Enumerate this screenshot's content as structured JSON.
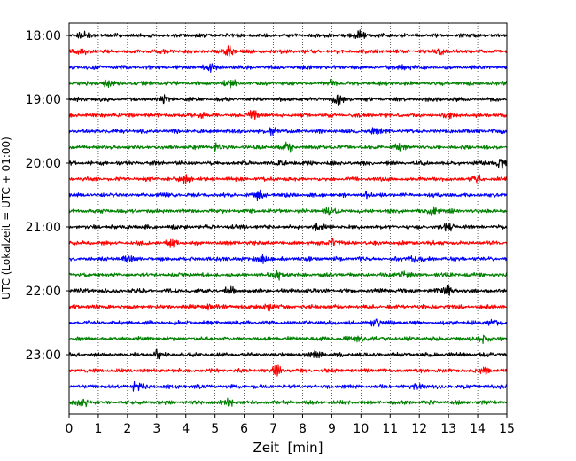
{
  "chart_data": {
    "type": "line",
    "title": "",
    "xlabel": "Zeit  [min]",
    "ylabel": "UTC (Lokalzeit = UTC + 01:00)",
    "xlim": [
      0,
      15
    ],
    "x_ticks": [
      "0",
      "1",
      "2",
      "3",
      "4",
      "5",
      "6",
      "7",
      "8",
      "9",
      "10",
      "11",
      "12",
      "13",
      "14",
      "15"
    ],
    "y_tick_labels": [
      "18:00",
      "19:00",
      "20:00",
      "21:00",
      "22:00",
      "23:00"
    ],
    "grid": "vertical dotted lines at each minute",
    "trace_interval_min": 15,
    "trace_color_cycle": [
      "#000000",
      "#ff0000",
      "#0000ff",
      "#008000"
    ],
    "traces": [
      {
        "start": "18:00",
        "color": "#000000",
        "bursts": [
          10.0,
          0.5
        ]
      },
      {
        "start": "18:15",
        "color": "#ff0000",
        "bursts": [
          5.5,
          12.7,
          0.5
        ]
      },
      {
        "start": "18:30",
        "color": "#0000ff",
        "bursts": [
          4.8,
          11.5
        ]
      },
      {
        "start": "18:45",
        "color": "#008000",
        "bursts": [
          5.5,
          9.0,
          1.3
        ]
      },
      {
        "start": "19:00",
        "color": "#000000",
        "bursts": [
          9.2,
          3.2
        ]
      },
      {
        "start": "19:15",
        "color": "#ff0000",
        "bursts": [
          6.3,
          4.5,
          13.0
        ]
      },
      {
        "start": "19:30",
        "color": "#0000ff",
        "bursts": [
          10.5,
          7.0
        ]
      },
      {
        "start": "19:45",
        "color": "#008000",
        "bursts": [
          7.5,
          5.0,
          11.3
        ]
      },
      {
        "start": "20:00",
        "color": "#000000",
        "bursts": [
          14.8,
          7.3
        ]
      },
      {
        "start": "20:15",
        "color": "#ff0000",
        "bursts": [
          4.0,
          14.0
        ]
      },
      {
        "start": "20:30",
        "color": "#0000ff",
        "bursts": [
          6.5,
          10.2
        ]
      },
      {
        "start": "20:45",
        "color": "#008000",
        "bursts": [
          12.5,
          8.9
        ]
      },
      {
        "start": "21:00",
        "color": "#000000",
        "bursts": [
          8.5,
          13.0
        ]
      },
      {
        "start": "21:15",
        "color": "#ff0000",
        "bursts": [
          9.0,
          3.5
        ]
      },
      {
        "start": "21:30",
        "color": "#0000ff",
        "bursts": [
          6.6,
          11.8,
          2.0
        ]
      },
      {
        "start": "21:45",
        "color": "#008000",
        "bursts": [
          7.2,
          11.5
        ]
      },
      {
        "start": "22:00",
        "color": "#000000",
        "bursts": [
          13.0,
          5.5
        ]
      },
      {
        "start": "22:15",
        "color": "#ff0000",
        "bursts": [
          6.8,
          4.8
        ]
      },
      {
        "start": "22:30",
        "color": "#0000ff",
        "bursts": [
          10.5,
          14.5
        ]
      },
      {
        "start": "22:45",
        "color": "#008000",
        "bursts": [
          14.2,
          10.0
        ]
      },
      {
        "start": "23:00",
        "color": "#000000",
        "bursts": [
          3.0,
          8.5
        ]
      },
      {
        "start": "23:15",
        "color": "#ff0000",
        "bursts": [
          7.1,
          14.3
        ]
      },
      {
        "start": "23:30",
        "color": "#0000ff",
        "bursts": [
          2.3,
          12.0
        ]
      },
      {
        "start": "23:45",
        "color": "#008000",
        "bursts": [
          0.5,
          5.5
        ]
      }
    ]
  }
}
